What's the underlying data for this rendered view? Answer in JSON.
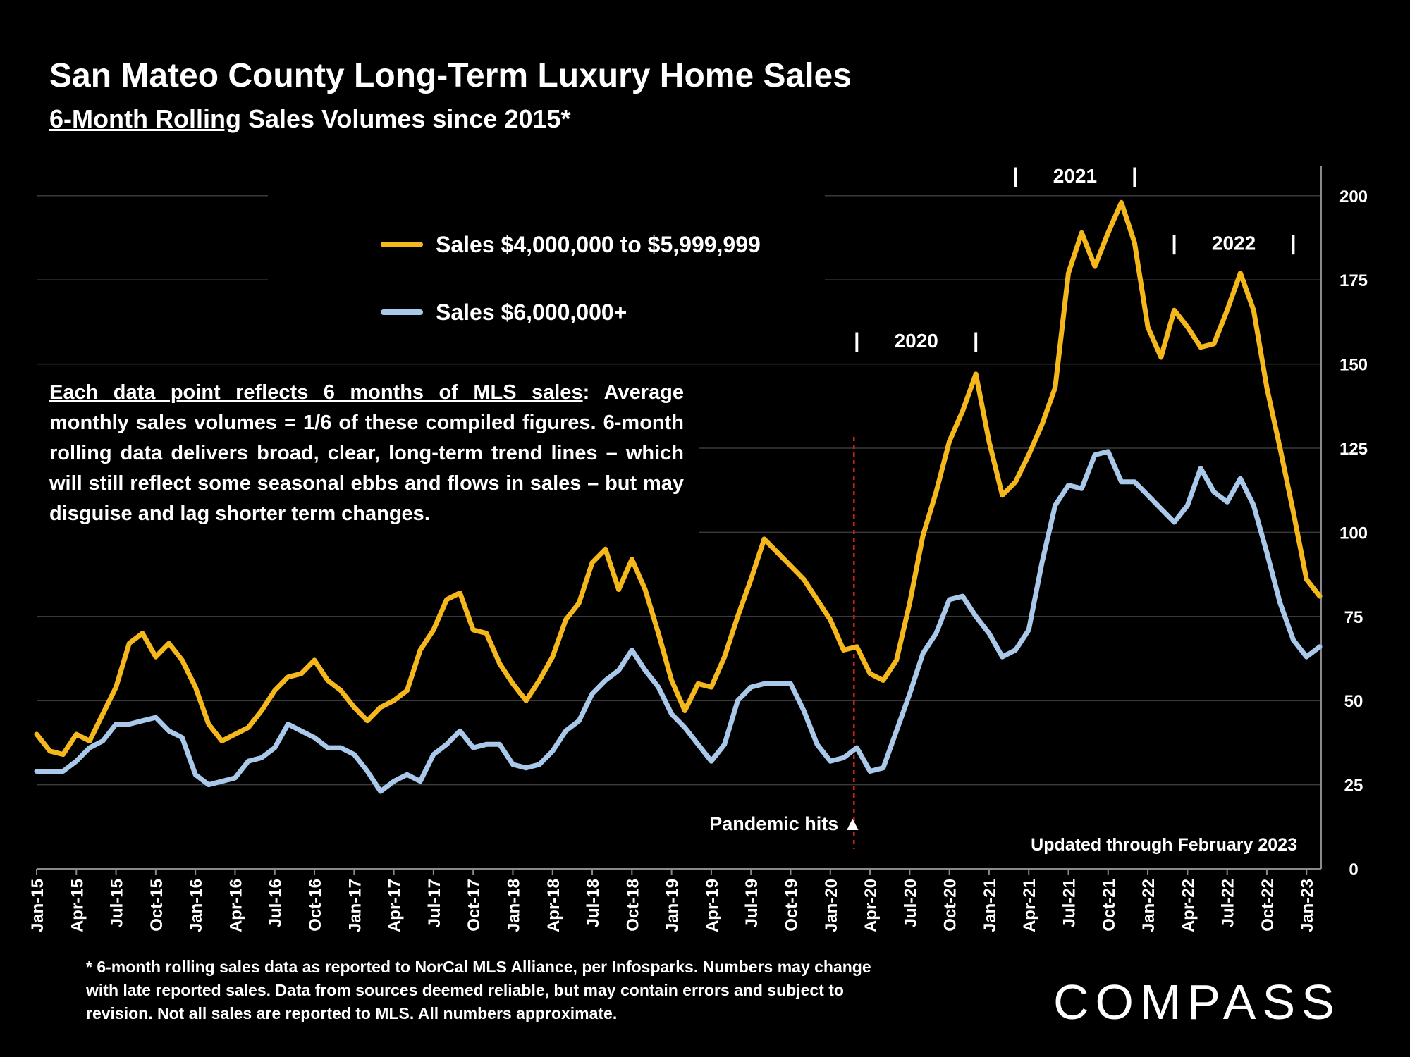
{
  "header": {
    "title": "San Mateo County Long-Term Luxury Home Sales",
    "subtitle_underlined": "6-Month Rolling",
    "subtitle_rest": " Sales Volumes since 2015*"
  },
  "legend": [
    {
      "label": "Sales $4,000,000 to $5,999,999",
      "color": "#F5B81C"
    },
    {
      "label": "Sales $6,000,000+",
      "color": "#A9C8EA"
    }
  ],
  "note": {
    "underlined": "Each data point reflects 6 months of MLS sales",
    "rest": ":  Average monthly sales volumes = 1/6 of these compiled figures. 6-month rolling data delivers broad, clear, long-term trend lines – which will still reflect some seasonal ebbs and flows in sales – but may disguise and lag shorter term changes."
  },
  "footnote": "* 6-month rolling sales data as reported to NorCal MLS Alliance, per Infosparks. Numbers may change with late reported sales. Data from sources deemed reliable, but may contain errors and subject to revision. Not all sales are reported to MLS. All numbers approximate.",
  "logo_text": "COMPASS",
  "chart_data": {
    "type": "line",
    "x_start": "Jan-15",
    "x_tick_labels": [
      "Jan-15",
      "Apr-15",
      "Jul-15",
      "Oct-15",
      "Jan-16",
      "Apr-16",
      "Jul-16",
      "Oct-16",
      "Jan-17",
      "Apr-17",
      "Jul-17",
      "Oct-17",
      "Jan-18",
      "Apr-18",
      "Jul-18",
      "Oct-18",
      "Jan-19",
      "Apr-19",
      "Jul-19",
      "Oct-19",
      "Jan-20",
      "Apr-20",
      "Jul-20",
      "Oct-20",
      "Jan-21",
      "Apr-21",
      "Jul-21",
      "Oct-21",
      "Jan-22",
      "Apr-22",
      "Jul-22",
      "Oct-22",
      "Jan-23"
    ],
    "y_ticks": [
      0,
      25,
      50,
      75,
      100,
      125,
      150,
      175,
      200
    ],
    "ylim": [
      0,
      210
    ],
    "y_axis_side": "right",
    "grid": true,
    "series": [
      {
        "name": "Sales $4,000,000 to $5,999,999",
        "color": "#F5B81C",
        "values": [
          40,
          35,
          34,
          40,
          38,
          46,
          54,
          67,
          70,
          63,
          67,
          62,
          54,
          43,
          38,
          40,
          42,
          47,
          53,
          57,
          58,
          62,
          56,
          53,
          48,
          44,
          48,
          50,
          53,
          65,
          71,
          80,
          82,
          71,
          70,
          61,
          55,
          50,
          56,
          63,
          74,
          79,
          91,
          95,
          83,
          92,
          83,
          70,
          56,
          47,
          55,
          54,
          63,
          75,
          86,
          98,
          94,
          90,
          86,
          80,
          74,
          65,
          66,
          58,
          56,
          62,
          79,
          99,
          112,
          127,
          136,
          147,
          127,
          111,
          115,
          123,
          132,
          143,
          177,
          189,
          179,
          189,
          198,
          186,
          161,
          152,
          166,
          161,
          155,
          156,
          166,
          177,
          166,
          143,
          125,
          106,
          86,
          81
        ]
      },
      {
        "name": "Sales $6,000,000+",
        "color": "#A9C8EA",
        "values": [
          29,
          29,
          29,
          32,
          36,
          38,
          43,
          43,
          44,
          45,
          41,
          39,
          28,
          25,
          26,
          27,
          32,
          33,
          36,
          43,
          41,
          39,
          36,
          36,
          34,
          29,
          23,
          26,
          28,
          26,
          34,
          37,
          41,
          36,
          37,
          37,
          31,
          30,
          31,
          35,
          41,
          44,
          52,
          56,
          59,
          65,
          59,
          54,
          46,
          42,
          37,
          32,
          37,
          50,
          54,
          55,
          55,
          55,
          47,
          37,
          32,
          33,
          36,
          29,
          30,
          41,
          52,
          64,
          70,
          80,
          81,
          75,
          70,
          63,
          65,
          71,
          91,
          108,
          114,
          113,
          123,
          124,
          115,
          115,
          111,
          107,
          103,
          108,
          119,
          112,
          109,
          116,
          108,
          94,
          79,
          68,
          63,
          66
        ]
      }
    ],
    "annotations": {
      "pandemic_label": "Pandemic hits",
      "pandemic_marker": "▲",
      "pandemic_month_index": 62,
      "updated_label": "Updated through February 2023",
      "year_brackets": [
        {
          "label": "2020",
          "start_index": 62,
          "end_index": 71,
          "level": 157
        },
        {
          "label": "2021",
          "start_index": 74,
          "end_index": 83,
          "level": 206
        },
        {
          "label": "2022",
          "start_index": 86,
          "end_index": 95,
          "level": 186
        }
      ]
    }
  }
}
